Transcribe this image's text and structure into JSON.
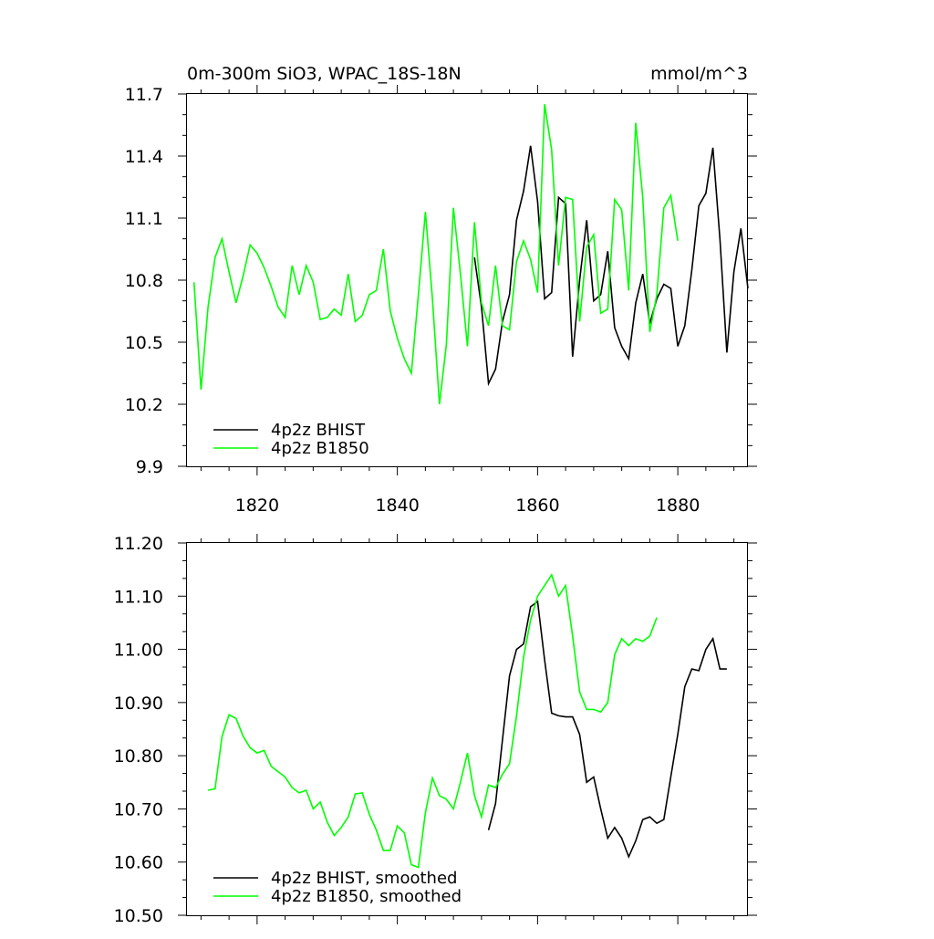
{
  "chart_data": [
    {
      "type": "line",
      "title": "0m-300m SiO3, WPAC_18S-18N",
      "units_label": "mmol/m^3",
      "xlabel": "",
      "ylabel": "",
      "xlim": [
        1810,
        1890
      ],
      "ylim": [
        9.9,
        11.7
      ],
      "yticks": [
        "9.9",
        "10.2",
        "10.5",
        "10.8",
        "11.1",
        "11.4",
        "11.7"
      ],
      "xticks": [
        "1820",
        "1840",
        "1860",
        "1880"
      ],
      "legend_position": "lower-left",
      "series": [
        {
          "name": "4p2z BHIST",
          "color": "#000000",
          "x": [
            1851,
            1852,
            1853,
            1854,
            1855,
            1856,
            1857,
            1858,
            1859,
            1860,
            1861,
            1862,
            1863,
            1864,
            1865,
            1866,
            1867,
            1868,
            1869,
            1870,
            1871,
            1872,
            1873,
            1874,
            1875,
            1876,
            1877,
            1878,
            1879,
            1880,
            1881,
            1882,
            1883,
            1884,
            1885,
            1886,
            1887,
            1888,
            1889,
            1890
          ],
          "values": [
            10.91,
            10.67,
            10.3,
            10.37,
            10.6,
            10.73,
            11.09,
            11.23,
            11.45,
            11.18,
            10.71,
            10.74,
            11.2,
            11.17,
            10.43,
            10.8,
            11.09,
            10.7,
            10.73,
            10.94,
            10.57,
            10.48,
            10.42,
            10.69,
            10.83,
            10.59,
            10.71,
            10.78,
            10.76,
            10.48,
            10.58,
            10.85,
            11.16,
            11.22,
            11.44,
            11.0,
            10.45,
            10.84,
            11.05,
            10.76
          ]
        },
        {
          "name": "4p2z B1850",
          "color": "#00ff00",
          "x": [
            1811,
            1812,
            1813,
            1814,
            1815,
            1816,
            1817,
            1818,
            1819,
            1820,
            1821,
            1822,
            1823,
            1824,
            1825,
            1826,
            1827,
            1828,
            1829,
            1830,
            1831,
            1832,
            1833,
            1834,
            1835,
            1836,
            1837,
            1838,
            1839,
            1840,
            1841,
            1842,
            1843,
            1844,
            1845,
            1846,
            1847,
            1848,
            1849,
            1850,
            1851,
            1852,
            1853,
            1854,
            1855,
            1856,
            1857,
            1858,
            1859,
            1860,
            1861,
            1862,
            1863,
            1864,
            1865,
            1866,
            1867,
            1868,
            1869,
            1870,
            1871,
            1872,
            1873,
            1874,
            1875,
            1876,
            1877,
            1878,
            1879,
            1880
          ],
          "values": [
            10.79,
            10.27,
            10.67,
            10.91,
            11.0,
            10.84,
            10.69,
            10.82,
            10.97,
            10.93,
            10.86,
            10.77,
            10.67,
            10.62,
            10.87,
            10.73,
            10.87,
            10.79,
            10.61,
            10.62,
            10.66,
            10.63,
            10.83,
            10.6,
            10.63,
            10.73,
            10.75,
            10.95,
            10.65,
            10.52,
            10.42,
            10.35,
            10.73,
            11.13,
            10.71,
            10.2,
            10.49,
            11.15,
            10.83,
            10.48,
            11.08,
            10.69,
            10.58,
            10.87,
            10.58,
            10.56,
            10.89,
            10.99,
            10.9,
            10.74,
            11.65,
            11.43,
            10.87,
            11.2,
            11.19,
            10.6,
            10.96,
            11.02,
            10.64,
            10.66,
            11.19,
            11.14,
            10.75,
            11.56,
            11.2,
            10.55,
            10.73,
            11.15,
            11.21,
            10.99
          ]
        }
      ]
    },
    {
      "type": "line",
      "title": "",
      "xlabel": "",
      "ylabel": "",
      "xlim": [
        1810,
        1890
      ],
      "ylim": [
        10.5,
        11.2
      ],
      "yticks": [
        "10.50",
        "10.60",
        "10.70",
        "10.80",
        "10.90",
        "11.00",
        "11.10",
        "11.20"
      ],
      "legend_position": "lower-left",
      "series": [
        {
          "name": "4p2z BHIST, smoothed",
          "color": "#000000",
          "x": [
            1853,
            1854,
            1855,
            1856,
            1857,
            1858,
            1859,
            1860,
            1861,
            1862,
            1863,
            1864,
            1865,
            1866,
            1867,
            1868,
            1869,
            1870,
            1871,
            1872,
            1873,
            1874,
            1875,
            1876,
            1877,
            1878,
            1879,
            1880,
            1881,
            1882,
            1883,
            1884,
            1885,
            1886,
            1887
          ],
          "values": [
            10.66,
            10.71,
            10.83,
            10.95,
            11.0,
            11.01,
            11.08,
            11.09,
            10.98,
            10.88,
            10.875,
            10.873,
            10.873,
            10.84,
            10.75,
            10.76,
            10.7,
            10.645,
            10.665,
            10.645,
            10.61,
            10.64,
            10.68,
            10.685,
            10.673,
            10.68,
            10.76,
            10.84,
            10.93,
            10.963,
            10.96,
            11.0,
            11.02,
            10.963,
            10.963
          ]
        },
        {
          "name": "4p2z B1850, smoothed",
          "color": "#00ff00",
          "x": [
            1813,
            1814,
            1815,
            1816,
            1817,
            1818,
            1819,
            1820,
            1821,
            1822,
            1823,
            1824,
            1825,
            1826,
            1827,
            1828,
            1829,
            1830,
            1831,
            1832,
            1833,
            1834,
            1835,
            1836,
            1837,
            1838,
            1839,
            1840,
            1841,
            1842,
            1843,
            1844,
            1845,
            1846,
            1847,
            1848,
            1849,
            1850,
            1851,
            1852,
            1853,
            1854,
            1855,
            1856,
            1857,
            1858,
            1859,
            1860,
            1861,
            1862,
            1863,
            1864,
            1865,
            1866,
            1867,
            1868,
            1869,
            1870,
            1871,
            1872,
            1873,
            1874,
            1875,
            1876,
            1877
          ],
          "values": [
            10.735,
            10.738,
            10.836,
            10.877,
            10.87,
            10.837,
            10.815,
            10.805,
            10.81,
            10.78,
            10.77,
            10.76,
            10.74,
            10.73,
            10.735,
            10.7,
            10.713,
            10.675,
            10.65,
            10.665,
            10.685,
            10.728,
            10.73,
            10.69,
            10.66,
            10.622,
            10.622,
            10.668,
            10.655,
            10.595,
            10.59,
            10.693,
            10.758,
            10.725,
            10.718,
            10.7,
            10.75,
            10.805,
            10.725,
            10.685,
            10.745,
            10.74,
            10.765,
            10.785,
            10.875,
            10.985,
            11.055,
            11.1,
            11.12,
            11.14,
            11.1,
            11.12,
            11.025,
            10.92,
            10.887,
            10.887,
            10.882,
            10.9,
            10.99,
            11.02,
            11.007,
            11.02,
            11.015,
            11.025,
            11.06
          ]
        }
      ]
    }
  ]
}
